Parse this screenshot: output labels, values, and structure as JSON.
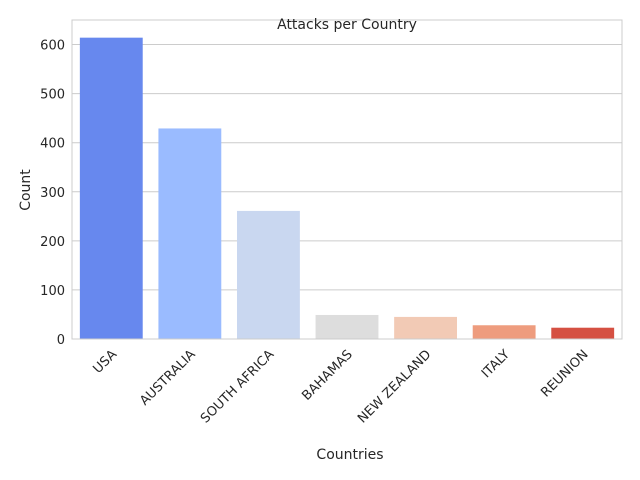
{
  "chart_data": {
    "type": "bar",
    "title": "Attacks per Country",
    "xlabel": "Countries",
    "ylabel": "Count",
    "categories": [
      "USA",
      "AUSTRALIA",
      "SOUTH AFRICA",
      "BAHAMAS",
      "NEW ZEALAND",
      "ITALY",
      "REUNION"
    ],
    "values": [
      614,
      429,
      261,
      49,
      45,
      28,
      23
    ],
    "colors": [
      "#6788ee",
      "#9abbff",
      "#c9d7f0",
      "#dddddd",
      "#f2cab5",
      "#ee9c7e",
      "#d55042"
    ],
    "ylim": [
      0,
      650
    ],
    "yticks": [
      0,
      100,
      200,
      300,
      400,
      500,
      600
    ],
    "grid": true,
    "legend": "none"
  }
}
